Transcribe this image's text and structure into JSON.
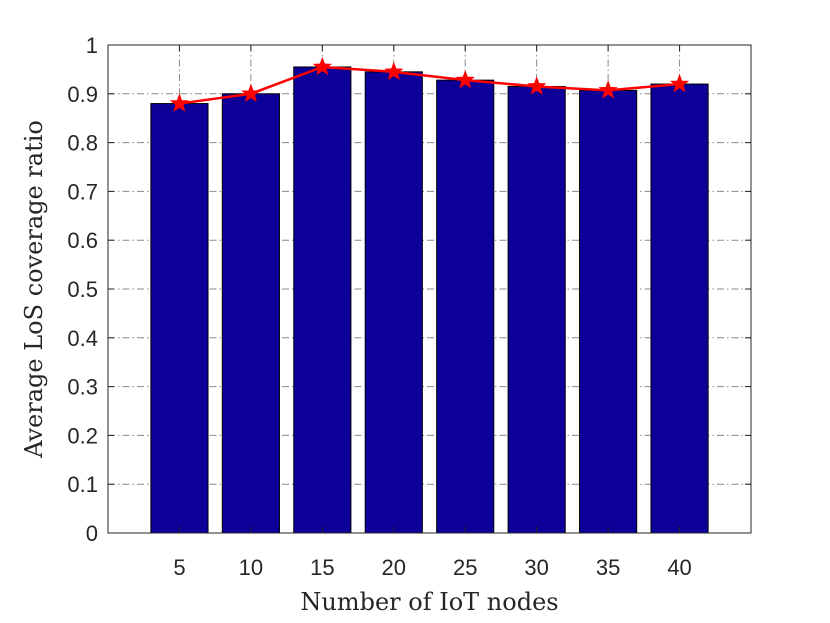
{
  "chart_data": {
    "type": "bar",
    "title": "",
    "xlabel": "Number of IoT nodes",
    "ylabel": "Average LoS coverage ratio",
    "categories": [
      "5",
      "10",
      "15",
      "20",
      "25",
      "30",
      "35",
      "40"
    ],
    "x": [
      5,
      10,
      15,
      20,
      25,
      30,
      35,
      40
    ],
    "xlim": [
      0,
      45
    ],
    "ylim": [
      0,
      1
    ],
    "yticks": [
      0,
      0.1,
      0.2,
      0.3,
      0.4,
      0.5,
      0.6,
      0.7,
      0.8,
      0.9,
      1
    ],
    "ytick_labels": [
      "0",
      "0.1",
      "0.2",
      "0.3",
      "0.4",
      "0.5",
      "0.6",
      "0.7",
      "0.8",
      "0.9",
      "1"
    ],
    "grid": true,
    "grid_style": "dash-dot",
    "series": [
      {
        "type": "bar",
        "values": [
          0.88,
          0.9,
          0.955,
          0.945,
          0.928,
          0.915,
          0.907,
          0.92
        ],
        "color": "#0C0099"
      },
      {
        "type": "line",
        "marker": "star",
        "values": [
          0.88,
          0.9,
          0.955,
          0.945,
          0.928,
          0.915,
          0.907,
          0.92
        ],
        "color": "#FF0000"
      }
    ]
  }
}
